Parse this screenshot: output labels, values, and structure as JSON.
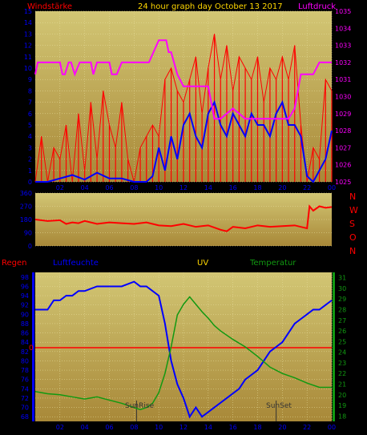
{
  "header": {
    "wind_label": "Windstärke",
    "title": "24 hour graph day   October 13 2017",
    "pressure_label": "Luftdruck"
  },
  "direction_labels": [
    "N",
    "W",
    "S",
    "O",
    "N"
  ],
  "lower_header": {
    "rain_label": "Regen",
    "humidity_label": "Luftfeuchte",
    "uv_label": "UV",
    "temp_label": "Temperatur"
  },
  "colors": {
    "bg": "#000000",
    "plot_top": "#cdc06f",
    "plot_bottom": "#a98a3e",
    "grid": "#e8e0a0",
    "wind": "#ff0000",
    "avg_wind": "#0000ff",
    "pressure": "#ff00ff",
    "direction": "#ff0000",
    "humidity": "#0000ff",
    "temperature": "#119911",
    "rain": "#ff0000",
    "uv": "#ffd700",
    "tick_text": "#0000ff",
    "right_tick_text": "#ff00ff",
    "temp_tick_text": "#119911"
  },
  "chart_data": [
    {
      "type": "line",
      "x_ticks": [
        "02",
        "04",
        "06",
        "08",
        "10",
        "12",
        "14",
        "16",
        "18",
        "20",
        "22",
        "00"
      ],
      "left_axis": {
        "label": "Windstärke",
        "ticks": [
          0,
          1,
          2,
          3,
          4,
          5,
          6,
          7,
          8,
          9,
          10,
          11,
          12,
          13,
          14,
          15
        ],
        "ylim": [
          0,
          15
        ]
      },
      "right_axis": {
        "label": "Luftdruck",
        "ticks": [
          1025,
          1026,
          1027,
          1028,
          1029,
          1030,
          1031,
          1032,
          1033,
          1034,
          1035
        ],
        "ylim": [
          1025,
          1035
        ]
      },
      "x_range": [
        0,
        24
      ],
      "series": [
        {
          "name": "Windstärke",
          "axis": "left",
          "style": "spikes",
          "x": [
            0,
            0.5,
            1,
            1.5,
            2,
            2.5,
            3,
            3.5,
            4,
            4.5,
            5,
            5.5,
            6,
            6.5,
            7,
            7.5,
            8,
            8.5,
            9,
            9.5,
            10,
            10.5,
            11,
            11.5,
            12,
            12.5,
            13,
            13.5,
            14,
            14.5,
            15,
            15.5,
            16,
            16.5,
            17,
            17.5,
            18,
            18.5,
            19,
            19.5,
            20,
            20.5,
            21,
            21.5,
            22,
            22.5,
            23,
            23.5,
            24
          ],
          "values": [
            0,
            4,
            0,
            3,
            2,
            5,
            0,
            6,
            1,
            7,
            2,
            8,
            5,
            3,
            7,
            2,
            0,
            3,
            4,
            5,
            4,
            9,
            10,
            8,
            7,
            9,
            11,
            6,
            10,
            13,
            9,
            12,
            8,
            11,
            10,
            9,
            11,
            7,
            10,
            9,
            11,
            9,
            12,
            5,
            0,
            3,
            2,
            9,
            8
          ]
        },
        {
          "name": "Mittel",
          "axis": "left",
          "style": "line",
          "x": [
            0,
            1,
            2,
            3,
            4,
            5,
            6,
            7,
            8,
            9,
            9.5,
            10,
            10.5,
            11,
            11.5,
            12,
            12.5,
            13,
            13.5,
            14,
            14.5,
            15,
            15.5,
            16,
            16.5,
            17,
            17.5,
            18,
            18.5,
            19,
            19.5,
            20,
            20.5,
            21,
            21.5,
            22,
            22.5,
            23,
            23.5,
            24
          ],
          "values": [
            0,
            0,
            0.3,
            0.6,
            0.2,
            0.8,
            0.3,
            0.3,
            0,
            0,
            0.5,
            3,
            1,
            4,
            2,
            5,
            6,
            4,
            3,
            6,
            7,
            5,
            4,
            6,
            5,
            4,
            6,
            5,
            5,
            4,
            6,
            7,
            5,
            5,
            4,
            0.5,
            0,
            1,
            2,
            4.5
          ]
        },
        {
          "name": "Luftdruck",
          "axis": "right",
          "style": "line",
          "x": [
            0,
            0.2,
            2,
            2.2,
            2.4,
            2.7,
            2.9,
            3.2,
            3.6,
            4.5,
            4.7,
            5,
            6,
            6.2,
            6.6,
            7,
            9,
            9.2,
            10,
            10.6,
            10.8,
            11,
            11.5,
            12,
            13,
            14,
            14.5,
            15,
            16,
            17,
            18,
            19,
            20,
            20.5,
            21,
            21.5,
            22,
            22.5,
            23,
            24
          ],
          "values": [
            1031.3,
            1032.0,
            1032.0,
            1031.3,
            1031.3,
            1032.0,
            1032.0,
            1031.3,
            1032.0,
            1032.0,
            1031.3,
            1032.0,
            1032.0,
            1031.3,
            1031.3,
            1032.0,
            1032.0,
            1032.0,
            1033.3,
            1033.3,
            1032.6,
            1032.6,
            1031.3,
            1030.6,
            1030.6,
            1030.6,
            1028.7,
            1028.7,
            1029.3,
            1028.7,
            1028.7,
            1028.7,
            1028.7,
            1028.7,
            1029.3,
            1031.3,
            1031.3,
            1031.3,
            1032.0,
            1032.0
          ]
        }
      ]
    },
    {
      "type": "line",
      "left_axis": {
        "ticks": [
          0,
          90,
          180,
          270,
          360
        ],
        "ylim": [
          0,
          360
        ]
      },
      "right_labels": [
        "N",
        "W",
        "S",
        "O",
        "N"
      ],
      "x_range": [
        0,
        24
      ],
      "series": [
        {
          "name": "Windrichtung",
          "x": [
            0,
            1,
            2,
            2.5,
            3,
            3.5,
            4,
            5,
            6,
            7,
            8,
            9,
            10,
            11,
            12,
            13,
            14,
            15,
            15.5,
            16,
            17,
            18,
            19,
            20,
            21,
            21.5,
            22,
            22.2,
            22.5,
            23,
            23.5,
            24
          ],
          "values": [
            180,
            170,
            175,
            150,
            160,
            155,
            170,
            150,
            160,
            155,
            150,
            160,
            140,
            135,
            150,
            130,
            140,
            110,
            100,
            130,
            120,
            140,
            130,
            135,
            140,
            130,
            120,
            270,
            240,
            270,
            260,
            265
          ]
        }
      ]
    },
    {
      "type": "line",
      "x_ticks": [
        "02",
        "04",
        "06",
        "08",
        "10",
        "12",
        "14",
        "16",
        "18",
        "20",
        "22",
        "00"
      ],
      "left_axis": {
        "label": "Luftfeuchte",
        "ticks": [
          68,
          70,
          72,
          74,
          76,
          78,
          80,
          82,
          84,
          86,
          88,
          90,
          92,
          94,
          96,
          98
        ],
        "ylim": [
          67,
          99
        ]
      },
      "right_axis": {
        "label": "Temperatur",
        "ticks": [
          18,
          19,
          20,
          21,
          22,
          23,
          24,
          25,
          26,
          27,
          28,
          29,
          30,
          31
        ],
        "ylim": [
          17.5,
          31.5
        ]
      },
      "rain_marker": "0",
      "annotations": [
        "SunRise",
        "SunSet"
      ],
      "x_range": [
        0,
        24
      ],
      "series": [
        {
          "name": "Luftfeuchte",
          "axis": "left",
          "x": [
            0,
            1,
            1.5,
            2,
            2.5,
            3,
            3.5,
            4,
            5,
            6,
            7,
            8,
            8.5,
            9,
            10,
            10.5,
            11,
            11.5,
            12,
            12.5,
            13,
            13.5,
            14,
            14.5,
            15,
            15.5,
            16,
            16.5,
            17,
            17.5,
            18,
            18.5,
            19,
            19.5,
            20,
            20.5,
            21,
            21.5,
            22,
            22.5,
            23,
            23.5,
            24
          ],
          "values": [
            91,
            91,
            93,
            93,
            94,
            94,
            95,
            95,
            96,
            96,
            96,
            97,
            96,
            96,
            94,
            88,
            80,
            75,
            72,
            68,
            70,
            68,
            69,
            70,
            71,
            72,
            73,
            74,
            76,
            77,
            78,
            80,
            82,
            83,
            84,
            86,
            88,
            89,
            90,
            91,
            91,
            92,
            93
          ]
        },
        {
          "name": "Temperatur",
          "axis": "right",
          "x": [
            0,
            1,
            2,
            3,
            4,
            5,
            6,
            7,
            8,
            8.5,
            9,
            9.5,
            10,
            10.5,
            11,
            11.5,
            12,
            12.5,
            13,
            13.5,
            14,
            14.5,
            15,
            16,
            17,
            18,
            19,
            20,
            21,
            22,
            23,
            24
          ],
          "values": [
            20.3,
            20.1,
            20.0,
            19.8,
            19.6,
            19.8,
            19.5,
            19.2,
            18.8,
            18.6,
            18.8,
            19.2,
            20.2,
            22,
            24.5,
            27.5,
            28.5,
            29.2,
            28.5,
            27.8,
            27.2,
            26.5,
            26,
            25.2,
            24.5,
            23.6,
            22.6,
            22.0,
            21.6,
            21.1,
            20.7,
            20.7
          ]
        },
        {
          "name": "Regen",
          "axis": "left",
          "values_mm": [
            0,
            0,
            0,
            0,
            0,
            0,
            0,
            0,
            0,
            0,
            0,
            0,
            0
          ]
        }
      ]
    }
  ]
}
